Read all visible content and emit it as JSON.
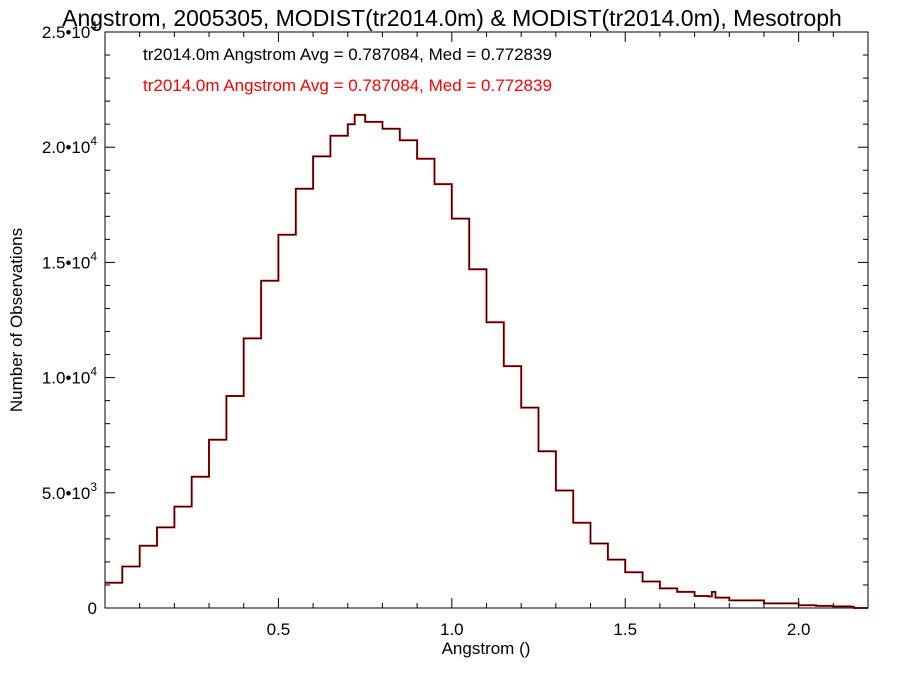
{
  "chart_data": {
    "type": "line",
    "title": "Angstrom, 2005305, MODIST(tr2014.0m) & MODIST(tr2014.0m), Mesotroph",
    "xlabel": "Angstrom ()",
    "ylabel": "Number of Observations",
    "xlim": [
      0.0,
      2.2
    ],
    "ylim": [
      0,
      25000
    ],
    "grid": false,
    "x_ticks": [
      {
        "value": 0.5,
        "label": "0.5"
      },
      {
        "value": 1.0,
        "label": "1.0"
      },
      {
        "value": 1.5,
        "label": "1.5"
      },
      {
        "value": 2.0,
        "label": "2.0"
      }
    ],
    "y_ticks": [
      {
        "value": 0,
        "mantissa": "0",
        "exponent": ""
      },
      {
        "value": 5000,
        "mantissa": "5.0•10",
        "exponent": "3"
      },
      {
        "value": 10000,
        "mantissa": "1.0•10",
        "exponent": "4"
      },
      {
        "value": 15000,
        "mantissa": "1.5•10",
        "exponent": "4"
      },
      {
        "value": 20000,
        "mantissa": "2.0•10",
        "exponent": "4"
      },
      {
        "value": 25000,
        "mantissa": "2.5•10",
        "exponent": "4"
      }
    ],
    "annotations": [
      {
        "text": "tr2014.0m Angstrom Avg = 0.787084, Med = 0.772839",
        "color": "#000000"
      },
      {
        "text": "tr2014.0m Angstrom Avg = 0.787084, Med = 0.772839",
        "color": "#ff0000"
      }
    ],
    "series": [
      {
        "color": "#ff0000",
        "style": "step",
        "x": [
          0.0,
          0.05,
          0.1,
          0.15,
          0.2,
          0.25,
          0.3,
          0.35,
          0.4,
          0.45,
          0.5,
          0.55,
          0.6,
          0.65,
          0.7,
          0.72,
          0.75,
          0.8,
          0.85,
          0.9,
          0.95,
          1.0,
          1.05,
          1.1,
          1.15,
          1.2,
          1.25,
          1.3,
          1.35,
          1.4,
          1.45,
          1.5,
          1.55,
          1.6,
          1.65,
          1.7,
          1.74,
          1.75,
          1.76,
          1.8,
          1.9,
          2.0,
          2.05,
          2.1,
          2.15,
          2.16,
          2.2
        ],
        "y": [
          1100,
          1800,
          2700,
          3500,
          4400,
          5700,
          7300,
          9200,
          11700,
          14200,
          16200,
          18200,
          19600,
          20500,
          21000,
          21400,
          21100,
          20800,
          20300,
          19500,
          18400,
          16900,
          14700,
          12400,
          10500,
          8700,
          6800,
          5100,
          3700,
          2800,
          2100,
          1550,
          1150,
          850,
          700,
          520,
          500,
          700,
          450,
          330,
          200,
          120,
          90,
          70,
          50,
          0,
          0
        ]
      },
      {
        "color": "#000000",
        "style": "step",
        "x": [
          0.0,
          0.05,
          0.1,
          0.15,
          0.2,
          0.25,
          0.3,
          0.35,
          0.4,
          0.45,
          0.5,
          0.55,
          0.6,
          0.65,
          0.7,
          0.72,
          0.75,
          0.8,
          0.85,
          0.9,
          0.95,
          1.0,
          1.05,
          1.1,
          1.15,
          1.2,
          1.25,
          1.3,
          1.35,
          1.4,
          1.45,
          1.5,
          1.55,
          1.6,
          1.65,
          1.7,
          1.74,
          1.75,
          1.76,
          1.8,
          1.9,
          2.0,
          2.05,
          2.1,
          2.15,
          2.16,
          2.2
        ],
        "y": [
          1100,
          1800,
          2700,
          3500,
          4400,
          5700,
          7300,
          9200,
          11700,
          14200,
          16200,
          18200,
          19600,
          20500,
          21000,
          21400,
          21100,
          20800,
          20300,
          19500,
          18400,
          16900,
          14700,
          12400,
          10500,
          8700,
          6800,
          5100,
          3700,
          2800,
          2100,
          1550,
          1150,
          850,
          700,
          520,
          500,
          700,
          450,
          330,
          200,
          120,
          90,
          70,
          50,
          0,
          0
        ]
      }
    ]
  }
}
